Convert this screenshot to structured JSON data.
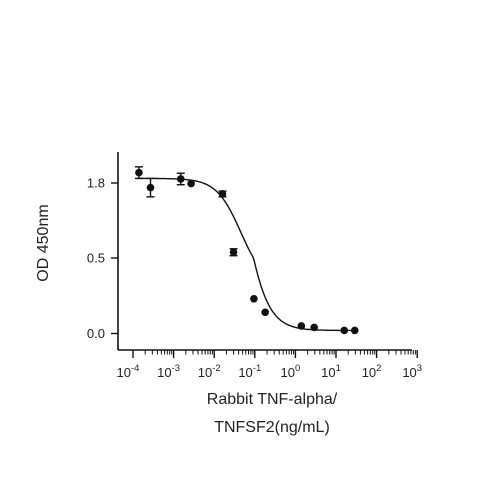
{
  "chart_data": {
    "type": "scatter",
    "xlabel_lines": [
      "Rabbit TNF-alpha/",
      "TNFSF2(ng/mL)"
    ],
    "ylabel": "OD 450nm",
    "x_scale": "log",
    "xlim": [
      0.0001,
      1000
    ],
    "x_ticks": [
      {
        "value": 0.0001,
        "base": "10",
        "exp": "-4"
      },
      {
        "value": 0.001,
        "base": "10",
        "exp": "-3"
      },
      {
        "value": 0.01,
        "base": "10",
        "exp": "-2"
      },
      {
        "value": 0.1,
        "base": "10",
        "exp": "-1"
      },
      {
        "value": 1,
        "base": "10",
        "exp": "0"
      },
      {
        "value": 10,
        "base": "10",
        "exp": "1"
      },
      {
        "value": 100,
        "base": "10",
        "exp": "2"
      },
      {
        "value": 1000,
        "base": "10",
        "exp": "3"
      }
    ],
    "y_ticks": [
      {
        "value": 0.0,
        "label": "0.0"
      },
      {
        "value": 0.5,
        "label": "0.5"
      },
      {
        "value": 1.8,
        "label": "1.8"
      }
    ],
    "y_axis_note": "segmented y axis: 0.0 to 0.5 and 0.5 to 1.8 occupy equal heights",
    "grid": false,
    "legend": "none",
    "marker_color": "#111111",
    "points": [
      {
        "x": 0.00014,
        "y": 1.98,
        "err": 0.1
      },
      {
        "x": 0.00027,
        "y": 1.72,
        "err": 0.16
      },
      {
        "x": 0.0015,
        "y": 1.87,
        "err": 0.1
      },
      {
        "x": 0.0027,
        "y": 1.79,
        "err": 0.0
      },
      {
        "x": 0.016,
        "y": 1.61,
        "err": 0.05
      },
      {
        "x": 0.03,
        "y": 0.6,
        "err": 0.06
      },
      {
        "x": 0.095,
        "y": 0.23,
        "err": 0.0
      },
      {
        "x": 0.18,
        "y": 0.14,
        "err": 0.0
      },
      {
        "x": 1.4,
        "y": 0.05,
        "err": 0.0
      },
      {
        "x": 2.9,
        "y": 0.04,
        "err": 0.0
      },
      {
        "x": 16,
        "y": 0.02,
        "err": 0.0
      },
      {
        "x": 29,
        "y": 0.02,
        "err": 0.0
      }
    ],
    "fit_curve": {
      "model": "4PL",
      "top": 1.88,
      "bottom": 0.02,
      "ic50": 0.045,
      "hill": 1.45,
      "x_range": [
        0.00012,
        32
      ]
    }
  }
}
